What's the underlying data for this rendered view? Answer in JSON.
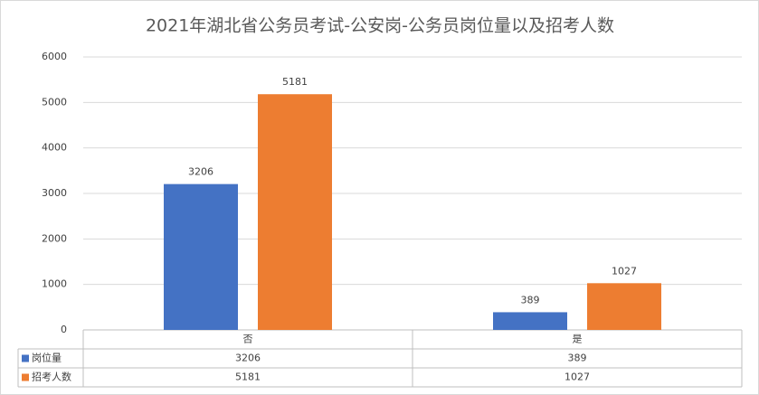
{
  "chart_data": {
    "type": "bar",
    "title": "2021年湖北省公务员考试-公安岗-公务员岗位量以及招考人数",
    "categories": [
      "否",
      "是"
    ],
    "series": [
      {
        "name": "岗位量",
        "color": "#4472c4",
        "values": [
          3206,
          389
        ]
      },
      {
        "name": "招考人数",
        "color": "#ed7d31",
        "values": [
          5181,
          1027
        ]
      }
    ],
    "ylim": [
      0,
      6000
    ],
    "yticks": [
      0,
      1000,
      2000,
      3000,
      4000,
      5000,
      6000
    ],
    "grid": true
  }
}
